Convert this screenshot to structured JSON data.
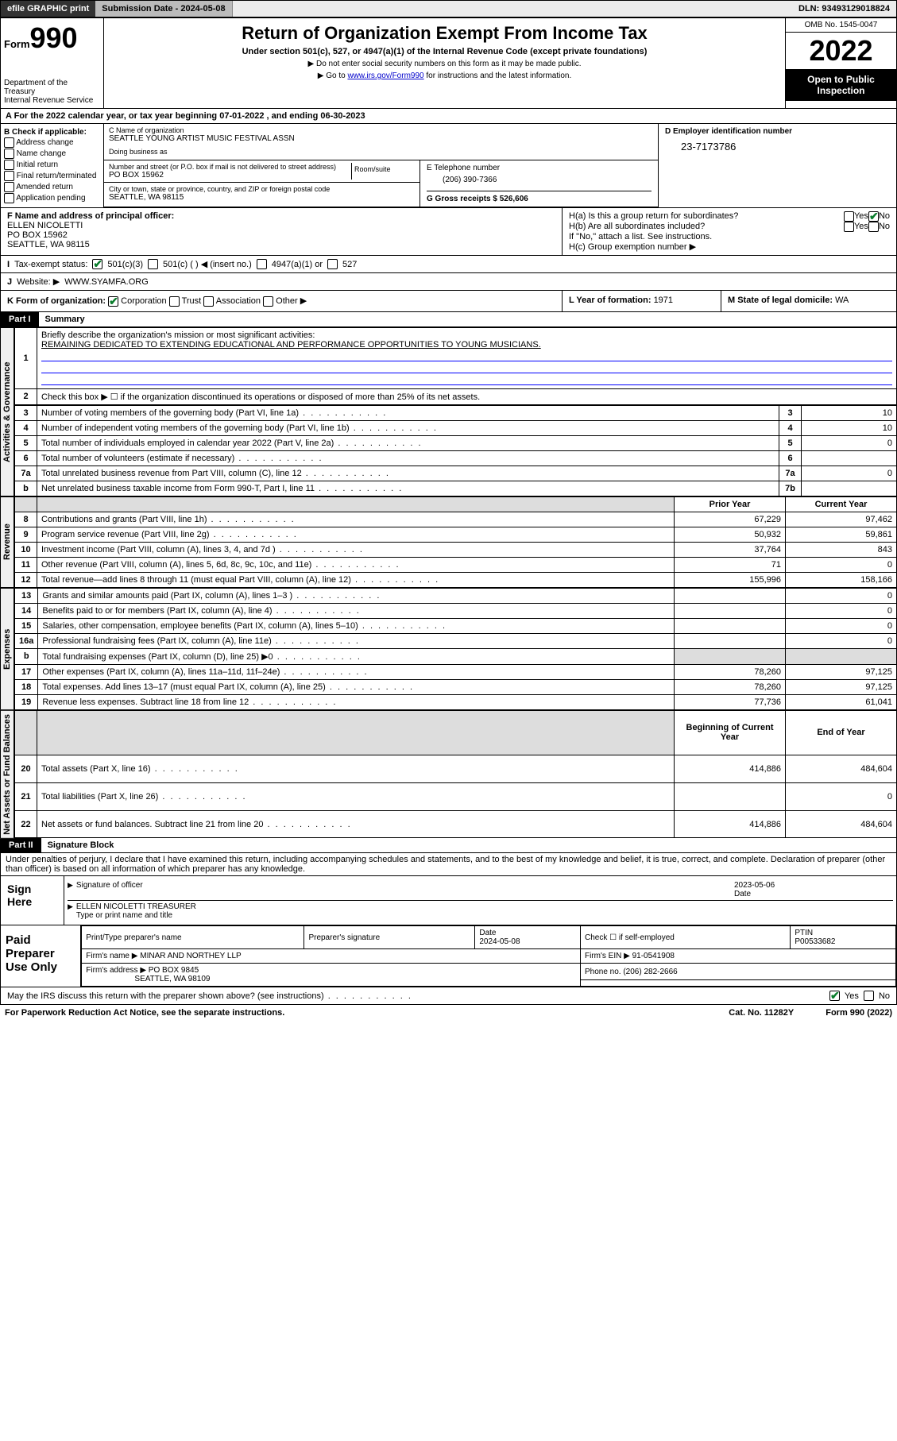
{
  "topbar": {
    "efile": "efile GRAPHIC print",
    "subdate_label": "Submission Date - ",
    "subdate": "2024-05-08",
    "dln_label": "DLN: ",
    "dln": "93493129018824"
  },
  "header": {
    "form_label": "Form",
    "form_num": "990",
    "dept": "Department of the Treasury\nInternal Revenue Service",
    "title": "Return of Organization Exempt From Income Tax",
    "sub": "Under section 501(c), 527, or 4947(a)(1) of the Internal Revenue Code (except private foundations)",
    "note1": "▶ Do not enter social security numbers on this form as it may be made public.",
    "note2_pre": "▶ Go to ",
    "note2_link": "www.irs.gov/Form990",
    "note2_post": " for instructions and the latest information.",
    "omb": "OMB No. 1545-0047",
    "year": "2022",
    "inspect": "Open to Public Inspection"
  },
  "rowA": {
    "text_pre": "A For the 2022 calendar year, or tax year beginning ",
    "begin": "07-01-2022",
    "mid": " , and ending ",
    "end": "06-30-2023"
  },
  "boxB": {
    "title": "B Check if applicable:",
    "items": [
      "Address change",
      "Name change",
      "Initial return",
      "Final return/terminated",
      "Amended return",
      "Application pending"
    ]
  },
  "boxC": {
    "name_lbl": "C Name of organization",
    "name": "SEATTLE YOUNG ARTIST MUSIC FESTIVAL ASSN",
    "dba_lbl": "Doing business as",
    "street_lbl": "Number and street (or P.O. box if mail is not delivered to street address)",
    "room_lbl": "Room/suite",
    "street": "PO BOX 15962",
    "city_lbl": "City or town, state or province, country, and ZIP or foreign postal code",
    "city": "SEATTLE, WA  98115"
  },
  "boxD": {
    "lbl": "D Employer identification number",
    "val": "23-7173786"
  },
  "boxE": {
    "lbl": "E Telephone number",
    "val": "(206) 390-7366"
  },
  "boxG": {
    "lbl": "G Gross receipts $ ",
    "val": "526,606"
  },
  "boxF": {
    "lbl": "F Name and address of principal officer:",
    "name": "ELLEN NICOLETTI",
    "addr1": "PO BOX 15962",
    "addr2": "SEATTLE, WA  98115"
  },
  "boxH": {
    "ha": "H(a)  Is this a group return for subordinates?",
    "hb": "H(b)  Are all subordinates included?",
    "hb_note": "If \"No,\" attach a list. See instructions.",
    "hc": "H(c)  Group exemption number ▶",
    "yes": "Yes",
    "no": "No"
  },
  "rowI": {
    "lbl": "I",
    "txt": "Tax-exempt status:",
    "c1": "501(c)(3)",
    "c2": "501(c) (  ) ◀ (insert no.)",
    "c3": "4947(a)(1) or",
    "c4": "527"
  },
  "rowJ": {
    "lbl": "J",
    "txt": "Website: ▶",
    "val": "WWW.SYAMFA.ORG"
  },
  "rowK": {
    "lbl": "K Form of organization:",
    "c1": "Corporation",
    "c2": "Trust",
    "c3": "Association",
    "c4": "Other ▶"
  },
  "rowL": {
    "lbl": "L Year of formation: ",
    "val": "1971"
  },
  "rowM": {
    "lbl": "M State of legal domicile: ",
    "val": "WA"
  },
  "parts": {
    "p1": "Part I",
    "p1t": "Summary",
    "p2": "Part II",
    "p2t": "Signature Block"
  },
  "summary": {
    "line1_lbl": "1",
    "line1": "Briefly describe the organization's mission or most significant activities:",
    "mission": "REMAINING DEDICATED TO EXTENDING EDUCATIONAL AND PERFORMANCE OPPORTUNITIES TO YOUNG MUSICIANS.",
    "line2_lbl": "2",
    "line2": "Check this box ▶ ☐  if the organization discontinued its operations or disposed of more than 25% of its net assets.",
    "vlab_ag": "Activities & Governance",
    "vlab_rev": "Revenue",
    "vlab_exp": "Expenses",
    "vlab_na": "Net Assets or Fund Balances",
    "rows": [
      {
        "n": "3",
        "t": "Number of voting members of the governing body (Part VI, line 1a)",
        "box": "3",
        "v": "10"
      },
      {
        "n": "4",
        "t": "Number of independent voting members of the governing body (Part VI, line 1b)",
        "box": "4",
        "v": "10"
      },
      {
        "n": "5",
        "t": "Total number of individuals employed in calendar year 2022 (Part V, line 2a)",
        "box": "5",
        "v": "0"
      },
      {
        "n": "6",
        "t": "Total number of volunteers (estimate if necessary)",
        "box": "6",
        "v": ""
      },
      {
        "n": "7a",
        "t": "Total unrelated business revenue from Part VIII, column (C), line 12",
        "box": "7a",
        "v": "0"
      },
      {
        "n": "b",
        "t": "Net unrelated business taxable income from Form 990-T, Part I, line 11",
        "box": "7b",
        "v": ""
      }
    ],
    "col_prior": "Prior Year",
    "col_curr": "Current Year",
    "rev": [
      {
        "n": "8",
        "t": "Contributions and grants (Part VIII, line 1h)",
        "p": "67,229",
        "c": "97,462"
      },
      {
        "n": "9",
        "t": "Program service revenue (Part VIII, line 2g)",
        "p": "50,932",
        "c": "59,861"
      },
      {
        "n": "10",
        "t": "Investment income (Part VIII, column (A), lines 3, 4, and 7d )",
        "p": "37,764",
        "c": "843"
      },
      {
        "n": "11",
        "t": "Other revenue (Part VIII, column (A), lines 5, 6d, 8c, 9c, 10c, and 11e)",
        "p": "71",
        "c": "0"
      },
      {
        "n": "12",
        "t": "Total revenue—add lines 8 through 11 (must equal Part VIII, column (A), line 12)",
        "p": "155,996",
        "c": "158,166"
      }
    ],
    "exp": [
      {
        "n": "13",
        "t": "Grants and similar amounts paid (Part IX, column (A), lines 1–3 )",
        "p": "",
        "c": "0"
      },
      {
        "n": "14",
        "t": "Benefits paid to or for members (Part IX, column (A), line 4)",
        "p": "",
        "c": "0"
      },
      {
        "n": "15",
        "t": "Salaries, other compensation, employee benefits (Part IX, column (A), lines 5–10)",
        "p": "",
        "c": "0"
      },
      {
        "n": "16a",
        "t": "Professional fundraising fees (Part IX, column (A), line 11e)",
        "p": "",
        "c": "0"
      },
      {
        "n": "b",
        "t": "Total fundraising expenses (Part IX, column (D), line 25) ▶0",
        "p": "shade",
        "c": "shade"
      },
      {
        "n": "17",
        "t": "Other expenses (Part IX, column (A), lines 11a–11d, 11f–24e)",
        "p": "78,260",
        "c": "97,125"
      },
      {
        "n": "18",
        "t": "Total expenses. Add lines 13–17 (must equal Part IX, column (A), line 25)",
        "p": "78,260",
        "c": "97,125"
      },
      {
        "n": "19",
        "t": "Revenue less expenses. Subtract line 18 from line 12",
        "p": "77,736",
        "c": "61,041"
      }
    ],
    "col_beg": "Beginning of Current Year",
    "col_end": "End of Year",
    "na": [
      {
        "n": "20",
        "t": "Total assets (Part X, line 16)",
        "p": "414,886",
        "c": "484,604"
      },
      {
        "n": "21",
        "t": "Total liabilities (Part X, line 26)",
        "p": "",
        "c": "0"
      },
      {
        "n": "22",
        "t": "Net assets or fund balances. Subtract line 21 from line 20",
        "p": "414,886",
        "c": "484,604"
      }
    ]
  },
  "sig": {
    "decl": "Under penalties of perjury, I declare that I have examined this return, including accompanying schedules and statements, and to the best of my knowledge and belief, it is true, correct, and complete. Declaration of preparer (other than officer) is based on all information of which preparer has any knowledge.",
    "sign_here": "Sign Here",
    "sig_officer": "Signature of officer",
    "date_lbl": "Date",
    "date": "2023-05-06",
    "name": "ELLEN NICOLETTI TREASURER",
    "name_lbl": "Type or print name and title"
  },
  "prep": {
    "title": "Paid Preparer Use Only",
    "h1": "Print/Type preparer's name",
    "h2": "Preparer's signature",
    "h3": "Date",
    "h3v": "2024-05-08",
    "h4": "Check ☐ if self-employed",
    "h5": "PTIN",
    "h5v": "P00533682",
    "firm_lbl": "Firm's name   ▶",
    "firm": "MINAR AND NORTHEY LLP",
    "ein_lbl": "Firm's EIN ▶",
    "ein": "91-0541908",
    "addr_lbl": "Firm's address ▶",
    "addr1": "PO BOX 9845",
    "addr2": "SEATTLE, WA  98109",
    "phone_lbl": "Phone no. ",
    "phone": "(206) 282-2666"
  },
  "discuss": {
    "txt": "May the IRS discuss this return with the preparer shown above? (see instructions)",
    "yes": "Yes",
    "no": "No"
  },
  "footer": {
    "left": "For Paperwork Reduction Act Notice, see the separate instructions.",
    "mid": "Cat. No. 11282Y",
    "right": "Form 990 (2022)"
  }
}
